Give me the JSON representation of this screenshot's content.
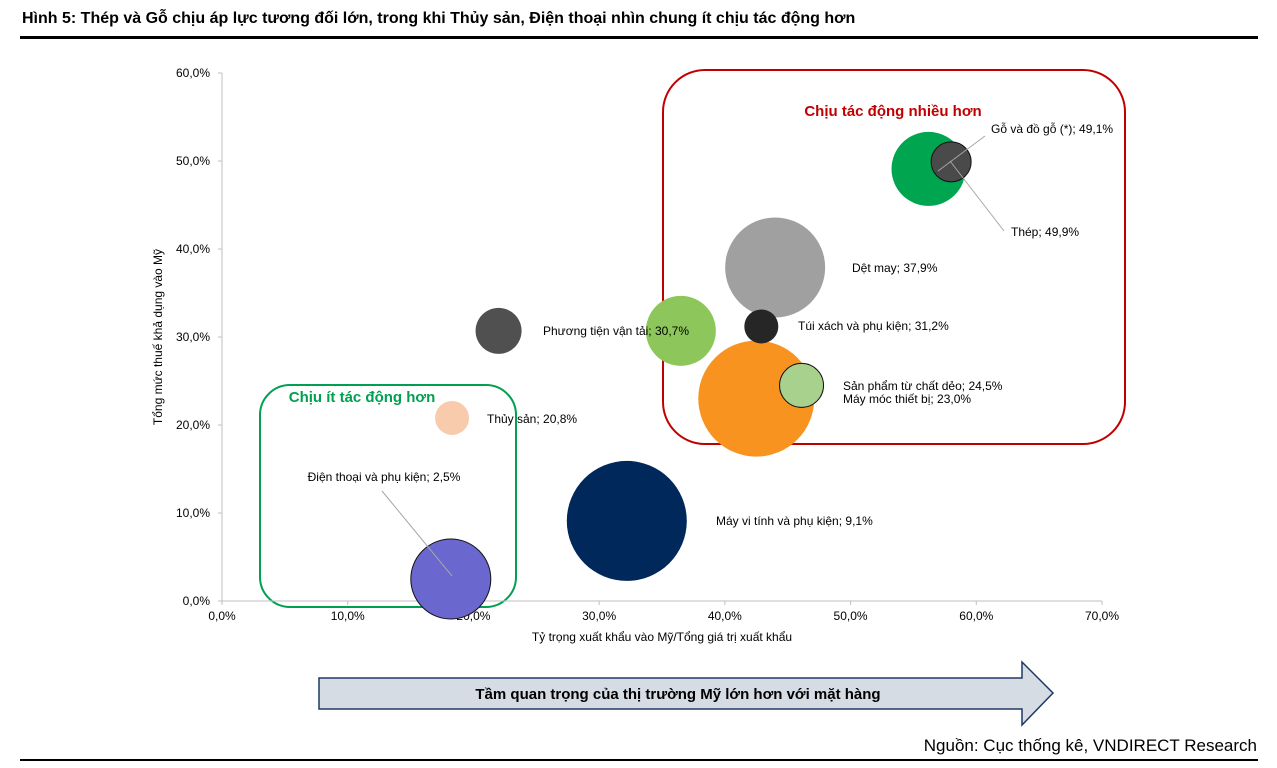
{
  "figure": {
    "title": "Hình 5: Thép và Gỗ chịu áp lực tương đối lớn, trong khi Thủy sản, Điện thoại nhìn chung ít chịu tác động hơn",
    "source": "Nguồn: Cục thống kê, VNDIRECT Research"
  },
  "arrow": {
    "label": "Tầm quan trọng của thị trường Mỹ lớn hơn với mặt hàng",
    "fill": "#d6dce4",
    "stroke": "#1f3864"
  },
  "boxes": {
    "high": {
      "label": "Chịu tác động nhiều hơn",
      "color": "#c00000"
    },
    "low": {
      "label": "Chịu ít tác động hơn",
      "color": "#00a050"
    }
  },
  "chart_data": {
    "type": "scatter",
    "title": "",
    "xlabel": "Tỷ trọng xuất khẩu vào Mỹ/Tổng giá trị xuất khẩu",
    "ylabel": "Tổng mức thuế khả dụng vào Mỹ",
    "xlim": [
      0,
      70
    ],
    "ylim": [
      0,
      60
    ],
    "x_ticks": [
      "0,0%",
      "10,0%",
      "20,0%",
      "30,0%",
      "40,0%",
      "50,0%",
      "60,0%",
      "70,0%"
    ],
    "y_ticks": [
      "0,0%",
      "10,0%",
      "20,0%",
      "30,0%",
      "40,0%",
      "50,0%",
      "60,0%"
    ],
    "grid": false,
    "legend": "none",
    "series": [
      {
        "label": "Máy móc thiết bị; 23,0%",
        "x": 42.5,
        "y": 23.0,
        "size": 58,
        "color": "#f7931e"
      },
      {
        "label": "Dệt may; 37,9%",
        "x": 44.0,
        "y": 37.9,
        "size": 50,
        "color": "#a0a0a0"
      },
      {
        "label": "Máy vi tính và phụ kiện; 9,1%",
        "x": 32.2,
        "y": 9.1,
        "size": 60,
        "color": "#00285a"
      },
      {
        "label": "Gỗ và đồ gỗ (*); 49,1%",
        "x": 56.2,
        "y": 49.1,
        "size": 37,
        "color": "#00a550"
      },
      {
        "label": "Phương tiện vận tải; 30,7%",
        "x": 36.5,
        "y": 30.7,
        "size": 35,
        "color": "#8dc65a"
      },
      {
        "label": "Điện thoại và phụ kiện; 2,5%",
        "x": 18.2,
        "y": 2.5,
        "size": 40,
        "color": "#6a67ce"
      },
      {
        "label": "Thép; 49,9%",
        "x": 58.0,
        "y": 49.9,
        "size": 20,
        "color": "#4a4a4a"
      },
      {
        "label": "Sản phẩm từ chất dẻo; 24,5%",
        "x": 46.1,
        "y": 24.5,
        "size": 22,
        "color": "#a9d18e"
      },
      {
        "label": "Thủy sản; 20,8%",
        "x": 18.3,
        "y": 20.8,
        "size": 17,
        "color": "#f8cbad"
      },
      {
        "label": "Túi xách và phụ kiện; 31,2%",
        "x": 42.9,
        "y": 31.2,
        "size": 17,
        "color": "#262626"
      },
      {
        "label": "",
        "x": 22.0,
        "y": 30.7,
        "size": 23,
        "color": "#505050"
      }
    ]
  }
}
